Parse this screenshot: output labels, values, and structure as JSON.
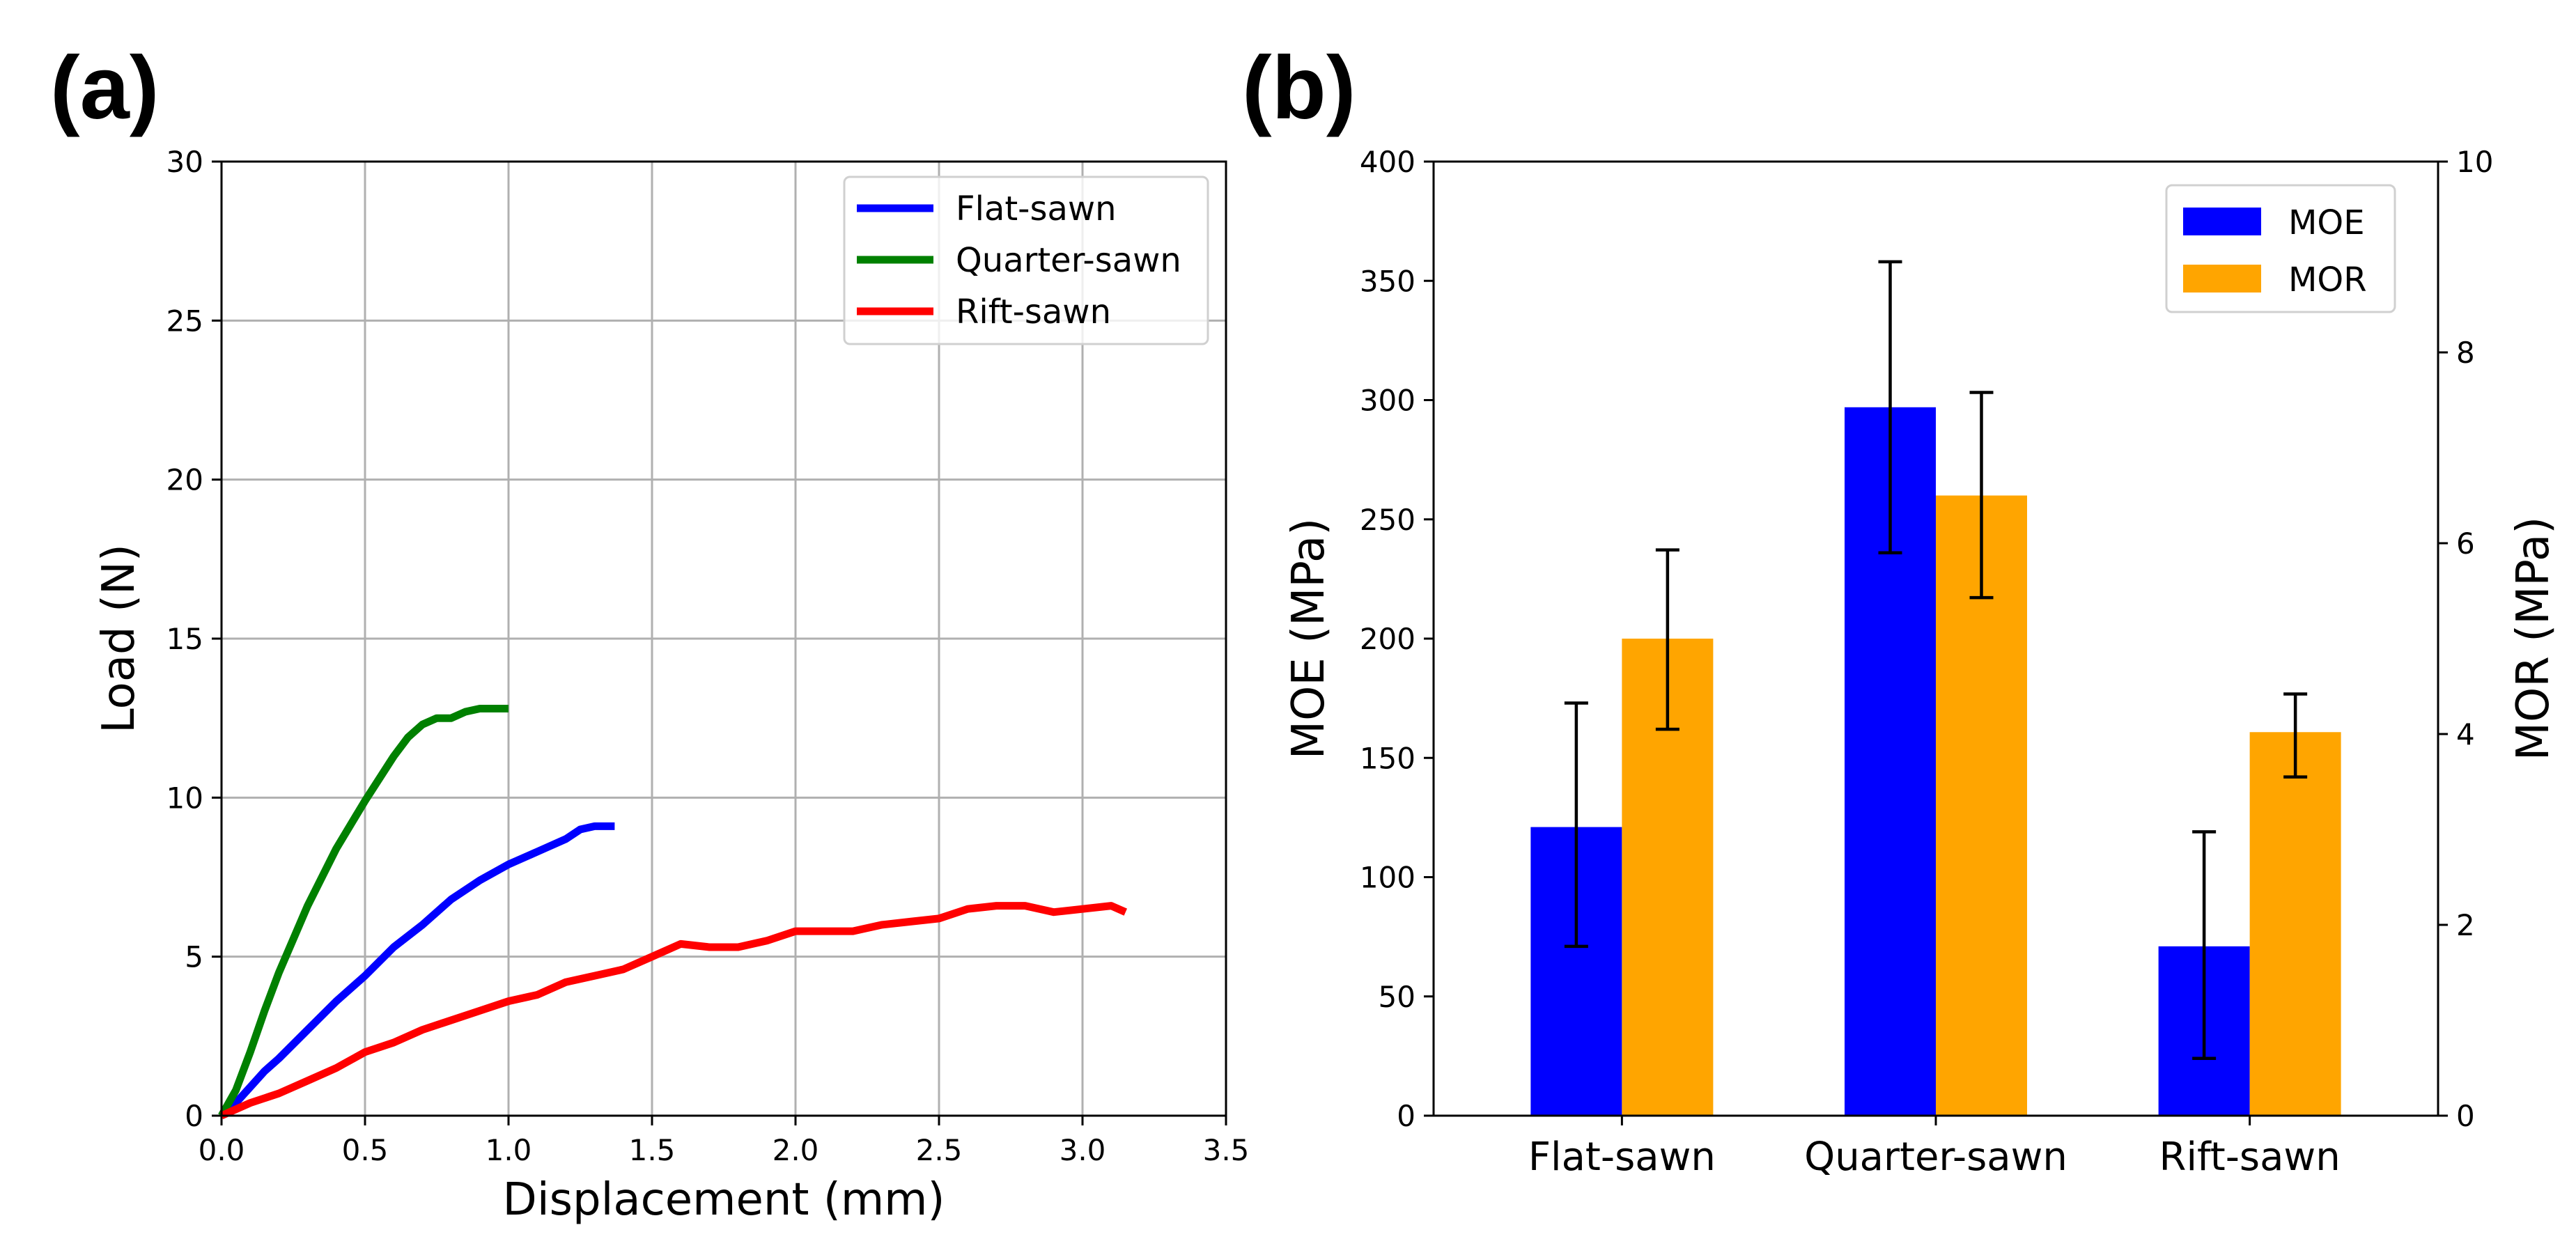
{
  "panels": {
    "a_label": "(a)",
    "b_label": "(b)"
  },
  "chart_data": [
    {
      "type": "line",
      "xlabel": "Displacement (mm)",
      "ylabel": "Load (N)",
      "xlim": [
        0,
        3.5
      ],
      "ylim": [
        0,
        30
      ],
      "xticks": [
        "0.0",
        "0.5",
        "1.0",
        "1.5",
        "2.0",
        "2.5",
        "3.0",
        "3.5"
      ],
      "yticks": [
        "0",
        "5",
        "10",
        "15",
        "20",
        "25",
        "30"
      ],
      "grid": true,
      "legend_position": "top-right",
      "series": [
        {
          "name": "Flat-sawn",
          "color": "#0000ff",
          "x": [
            0,
            0.05,
            0.1,
            0.15,
            0.2,
            0.3,
            0.4,
            0.5,
            0.6,
            0.7,
            0.8,
            0.9,
            1.0,
            1.1,
            1.2,
            1.25,
            1.3,
            1.37
          ],
          "y": [
            0,
            0.4,
            0.9,
            1.4,
            1.8,
            2.7,
            3.6,
            4.4,
            5.3,
            6.0,
            6.8,
            7.4,
            7.9,
            8.3,
            8.7,
            9.0,
            9.1,
            9.1
          ]
        },
        {
          "name": "Quarter-sawn",
          "color": "#008000",
          "x": [
            0,
            0.05,
            0.1,
            0.15,
            0.2,
            0.3,
            0.4,
            0.5,
            0.6,
            0.65,
            0.7,
            0.75,
            0.8,
            0.85,
            0.9,
            1.0
          ],
          "y": [
            0,
            0.8,
            2.0,
            3.3,
            4.5,
            6.6,
            8.4,
            9.9,
            11.3,
            11.9,
            12.3,
            12.5,
            12.5,
            12.7,
            12.8,
            12.8
          ]
        },
        {
          "name": "Rift-sawn",
          "color": "#ff0000",
          "x": [
            0,
            0.1,
            0.2,
            0.3,
            0.4,
            0.5,
            0.6,
            0.7,
            0.8,
            0.9,
            1.0,
            1.1,
            1.2,
            1.3,
            1.4,
            1.5,
            1.6,
            1.7,
            1.8,
            1.9,
            2.0,
            2.1,
            2.2,
            2.3,
            2.4,
            2.5,
            2.6,
            2.7,
            2.8,
            2.9,
            3.0,
            3.1,
            3.15
          ],
          "y": [
            0,
            0.4,
            0.7,
            1.1,
            1.5,
            2.0,
            2.3,
            2.7,
            3.0,
            3.3,
            3.6,
            3.8,
            4.2,
            4.4,
            4.6,
            5.0,
            5.4,
            5.3,
            5.3,
            5.5,
            5.8,
            5.8,
            5.8,
            6.0,
            6.1,
            6.2,
            6.5,
            6.6,
            6.6,
            6.4,
            6.5,
            6.6,
            6.4
          ]
        }
      ]
    },
    {
      "type": "bar",
      "categories": [
        "Flat-sawn",
        "Quarter-sawn",
        "Rift-sawn"
      ],
      "ylabel": "MOE (MPa)",
      "ylabel_right": "MOR (MPa)",
      "ylim": [
        0,
        400
      ],
      "ylim_right": [
        0,
        10
      ],
      "yticks": [
        "0",
        "50",
        "100",
        "150",
        "200",
        "250",
        "300",
        "350",
        "400"
      ],
      "yticks_right": [
        "0",
        "2",
        "4",
        "6",
        "8",
        "10"
      ],
      "legend_position": "top-right",
      "series": [
        {
          "name": "MOE",
          "color": "#0000ff",
          "axis": "left",
          "values": [
            121,
            297,
            71
          ],
          "err_low": [
            71,
            236,
            24
          ],
          "err_high": [
            173,
            358,
            119
          ]
        },
        {
          "name": "MOR",
          "color": "#ffa500",
          "axis": "right",
          "values": [
            5.0,
            6.5,
            4.02
          ],
          "err_low": [
            4.05,
            5.43,
            3.55
          ],
          "err_high": [
            5.93,
            7.58,
            4.42
          ]
        }
      ]
    }
  ]
}
